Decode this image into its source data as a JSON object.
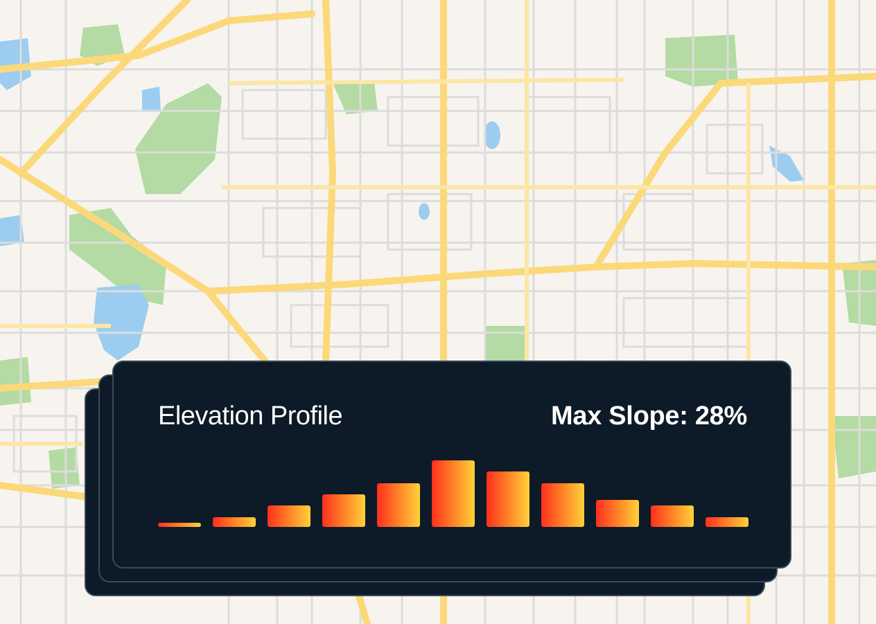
{
  "panel": {
    "title": "Elevation Profile",
    "metric_label": "Max Slope: 28%"
  },
  "chart_data": {
    "type": "bar",
    "title": "Elevation Profile",
    "values": [
      1,
      2,
      4,
      6,
      8,
      12,
      10,
      8,
      5,
      4,
      2
    ],
    "colors": {
      "bar_start": "#ff2f1f",
      "bar_end": "#ffd23a"
    }
  },
  "map": {
    "colors": {
      "background": "#f7f4ef",
      "major_road": "#fbd97a",
      "minor_road": "#dcdcdc",
      "park": "#a8d59a",
      "water": "#9ccdf0"
    }
  }
}
